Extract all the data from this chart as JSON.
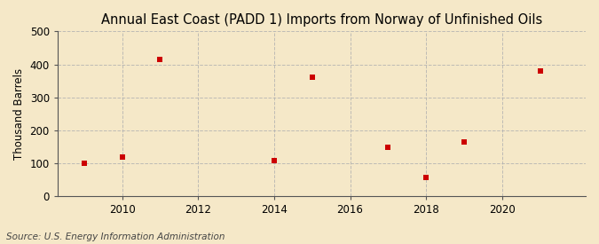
{
  "title": "Annual East Coast (PADD 1) Imports from Norway of Unfinished Oils",
  "ylabel": "Thousand Barrels",
  "source_text": "Source: U.S. Energy Information Administration",
  "background_color": "#f5e8c8",
  "plot_bg_color": "#f5e8c8",
  "years": [
    2009,
    2010,
    2011,
    2014,
    2015,
    2017,
    2018,
    2019,
    2021
  ],
  "values": [
    100,
    120,
    415,
    110,
    360,
    150,
    57,
    165,
    380
  ],
  "marker_color": "#cc0000",
  "marker": "s",
  "marker_size": 4,
  "xlim": [
    2008.3,
    2022.2
  ],
  "ylim": [
    0,
    500
  ],
  "yticks": [
    0,
    100,
    200,
    300,
    400,
    500
  ],
  "xticks": [
    2010,
    2012,
    2014,
    2016,
    2018,
    2020
  ],
  "grid_color": "#b0b0b0",
  "grid_linestyle": "--",
  "grid_alpha": 0.8,
  "title_fontsize": 10.5,
  "axis_fontsize": 8.5,
  "source_fontsize": 7.5,
  "spine_color": "#555555"
}
